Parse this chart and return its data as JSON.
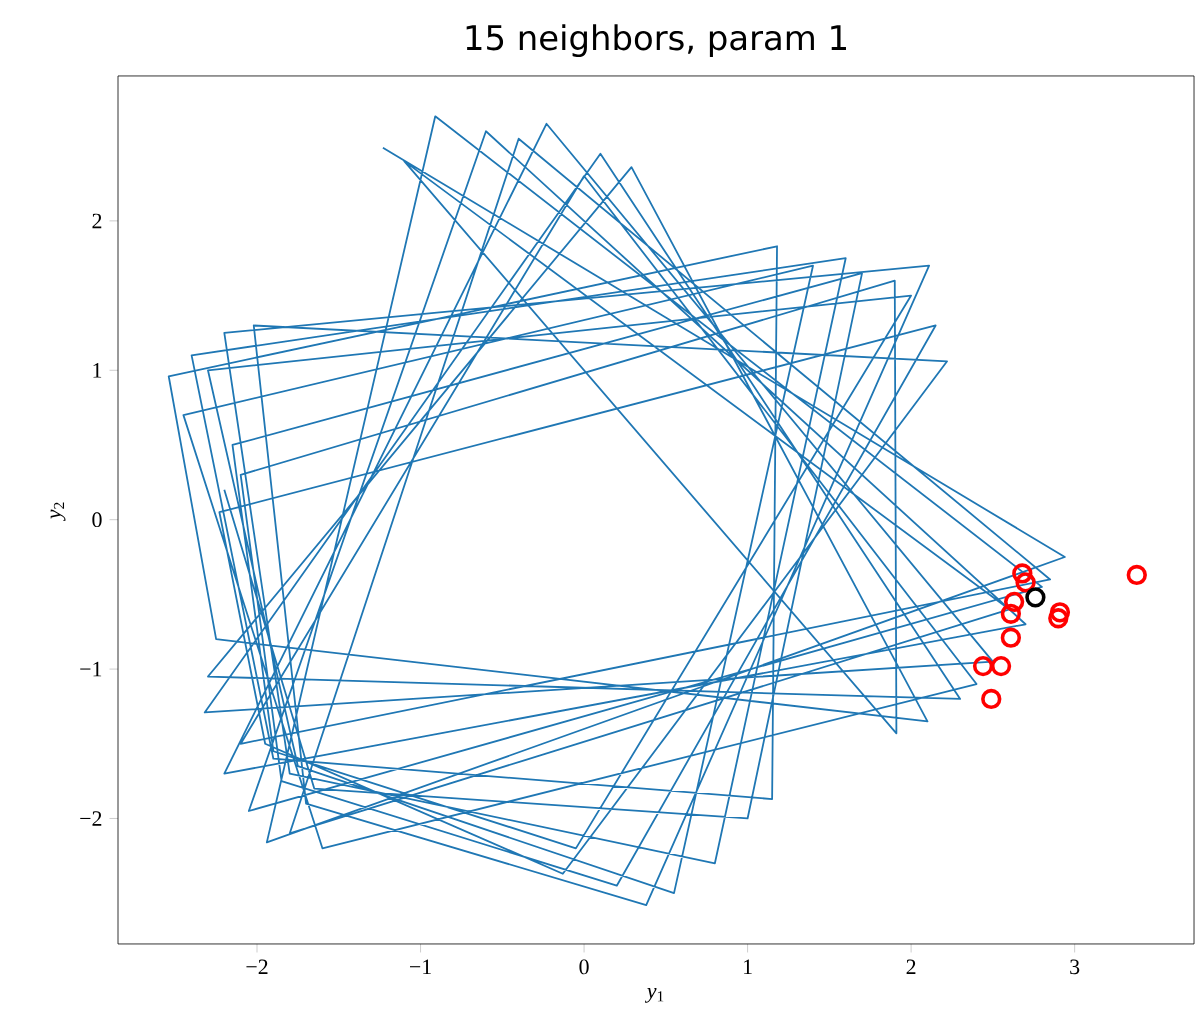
{
  "chart_data": {
    "type": "line",
    "title": "15 neighbors, param 1",
    "xlabel": "*y*$_{1}$",
    "ylabel": "*y*$_{2}$",
    "xlim": [
      -2.85,
      3.73
    ],
    "ylim": [
      -2.84,
      2.97
    ],
    "xticks": [
      {
        "value": -2,
        "label": "−2"
      },
      {
        "value": -1,
        "label": "−1"
      },
      0,
      1,
      2,
      3
    ],
    "yticks": [
      {
        "value": -2,
        "label": "−2"
      },
      {
        "value": -1,
        "label": "−1"
      },
      0,
      1,
      2
    ],
    "grid": false,
    "legend": false,
    "series": [
      {
        "color": "#1f77b4",
        "marker": "none",
        "line_style": "solid",
        "x": [
          -1.23,
          2.94,
          -1.94,
          -0.91,
          2.8,
          -2.05,
          -0.6,
          2.7,
          -2.2,
          -0.23,
          2.5,
          -2.32,
          0.1,
          2.3,
          -2.3,
          0.29,
          2.1,
          -2.25,
          -2.54,
          1.18,
          1.15,
          -1.9,
          -2.4,
          1.6,
          0.8,
          -1.8,
          -2.2,
          2.11,
          0.38,
          -1.7,
          -2.02,
          2.22,
          -0.13,
          -1.95,
          -2.23,
          2.15,
          0.2,
          -1.85,
          -2.1,
          1.9,
          1.91,
          -1.1,
          2.6,
          -1.8,
          -0.4,
          2.85,
          -2.1,
          0.0,
          2.4,
          -1.6,
          -2.45,
          1.4,
          0.55,
          -1.75,
          -2.3,
          2.0,
          -0.05,
          -1.9,
          -2.15,
          1.7,
          1.0,
          -1.65,
          -2.2
        ],
        "values": [
          2.49,
          -0.25,
          -2.16,
          2.7,
          -0.45,
          -1.95,
          2.6,
          -0.7,
          -1.7,
          2.65,
          -0.95,
          -1.29,
          2.45,
          -1.2,
          -1.05,
          2.36,
          -1.35,
          -0.8,
          0.96,
          1.83,
          -1.87,
          -1.6,
          1.1,
          1.75,
          -2.3,
          -1.7,
          1.25,
          1.7,
          -2.58,
          -1.9,
          1.3,
          1.06,
          -2.37,
          -1.5,
          0.05,
          1.3,
          -2.45,
          -1.75,
          0.3,
          1.6,
          -1.43,
          2.4,
          -0.6,
          -2.1,
          2.55,
          -0.4,
          -1.5,
          2.3,
          -1.1,
          -2.2,
          0.7,
          1.7,
          -2.5,
          -1.65,
          1.0,
          1.5,
          -2.2,
          -1.55,
          0.5,
          1.65,
          -2.0,
          -1.8,
          0.2
        ]
      },
      {
        "type": "scatter",
        "color": "#ff0000",
        "marker": "circle",
        "x": [
          2.68,
          2.7,
          2.91,
          2.9,
          2.63,
          2.61,
          2.61,
          2.44,
          2.55,
          2.49,
          3.38
        ],
        "values": [
          -0.36,
          -0.42,
          -0.62,
          -0.66,
          -0.55,
          -0.63,
          -0.79,
          -0.98,
          -0.98,
          -1.2,
          -0.37
        ]
      },
      {
        "type": "scatter",
        "color": "#000000",
        "marker": "circle",
        "x": [
          2.76
        ],
        "values": [
          -0.52
        ]
      }
    ]
  }
}
